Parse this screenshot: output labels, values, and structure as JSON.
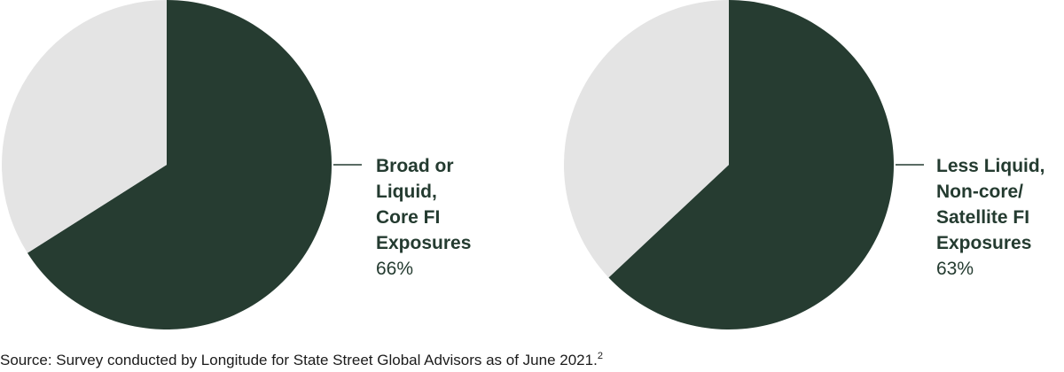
{
  "colors": {
    "primary": "#263c31",
    "remainder": "#e4e4e4",
    "text": "#243b30",
    "source_text": "#1b1b1b"
  },
  "chart_data": [
    {
      "type": "pie",
      "label_lines": [
        "Broad or",
        "Liquid,",
        "Core FI",
        "Exposures"
      ],
      "value_label": "66%",
      "values": [
        66,
        34
      ]
    },
    {
      "type": "pie",
      "label_lines": [
        "Less Liquid,",
        "Non-core/",
        "Satellite FI",
        "Exposures"
      ],
      "value_label": "63%",
      "values": [
        63,
        37
      ]
    }
  ],
  "source": {
    "text": "Source: Survey conducted by Longitude for State Street Global Advisors as of June 2021.",
    "superscript": "2"
  }
}
